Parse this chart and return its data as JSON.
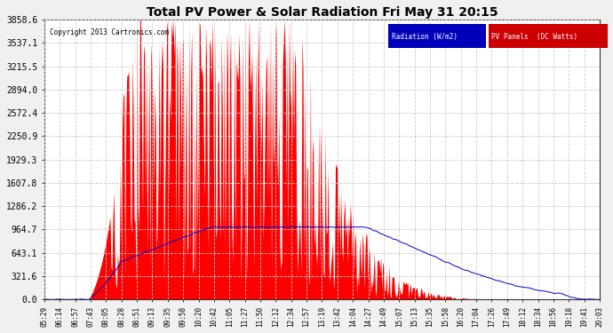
{
  "title": "Total PV Power & Solar Radiation Fri May 31 20:15",
  "copyright": "Copyright 2013 Cartronics.com",
  "legend_radiation": "Radiation (W/m2)",
  "legend_pv": "PV Panels  (DC Watts)",
  "ymax": 3858.6,
  "yticks": [
    0.0,
    321.6,
    643.1,
    964.7,
    1286.2,
    1607.8,
    1929.3,
    2250.9,
    2572.4,
    2894.0,
    3215.5,
    3537.1,
    3858.6
  ],
  "red_color": "#ff0000",
  "blue_color": "#0000cc",
  "fig_bg_color": "#f0f0f0",
  "plot_bg_color": "#ffffff",
  "grid_color": "#cccccc",
  "xtick_labels": [
    "05:29",
    "06:14",
    "06:57",
    "07:43",
    "08:05",
    "08:28",
    "08:51",
    "09:13",
    "09:35",
    "09:58",
    "10:20",
    "10:42",
    "11:05",
    "11:27",
    "11:50",
    "12:12",
    "12:34",
    "12:57",
    "13:19",
    "13:42",
    "14:04",
    "14:27",
    "14:49",
    "15:07",
    "15:13",
    "15:35",
    "15:58",
    "16:20",
    "17:04",
    "17:26",
    "17:49",
    "18:12",
    "18:34",
    "18:56",
    "19:18",
    "19:41",
    "20:03"
  ],
  "figsize": [
    6.9,
    3.75
  ],
  "dpi": 100
}
